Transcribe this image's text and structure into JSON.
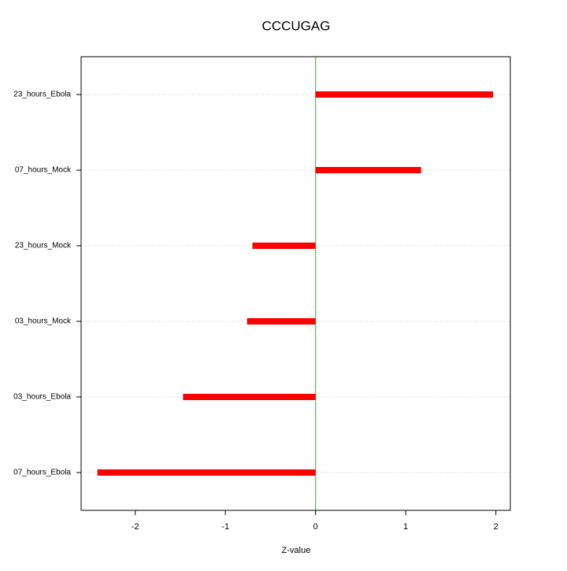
{
  "chart_data": {
    "type": "bar",
    "orientation": "horizontal",
    "title": "CCCUGAG",
    "x_label": "Z-value",
    "categories": [
      "23_hours_Ebola",
      "07_hours_Mock",
      "23_hours_Mock",
      "03_hours_Mock",
      "03_hours_Ebola",
      "07_hours_Ebola"
    ],
    "values": [
      1.97,
      1.17,
      -0.7,
      -0.76,
      -1.47,
      -2.42
    ],
    "color": "#ff0000",
    "zero_line_color": "#00cc00",
    "xlim": [
      -2.6,
      2.16
    ],
    "xticks": [
      -2,
      -1,
      0,
      1,
      2
    ],
    "grid": true
  }
}
